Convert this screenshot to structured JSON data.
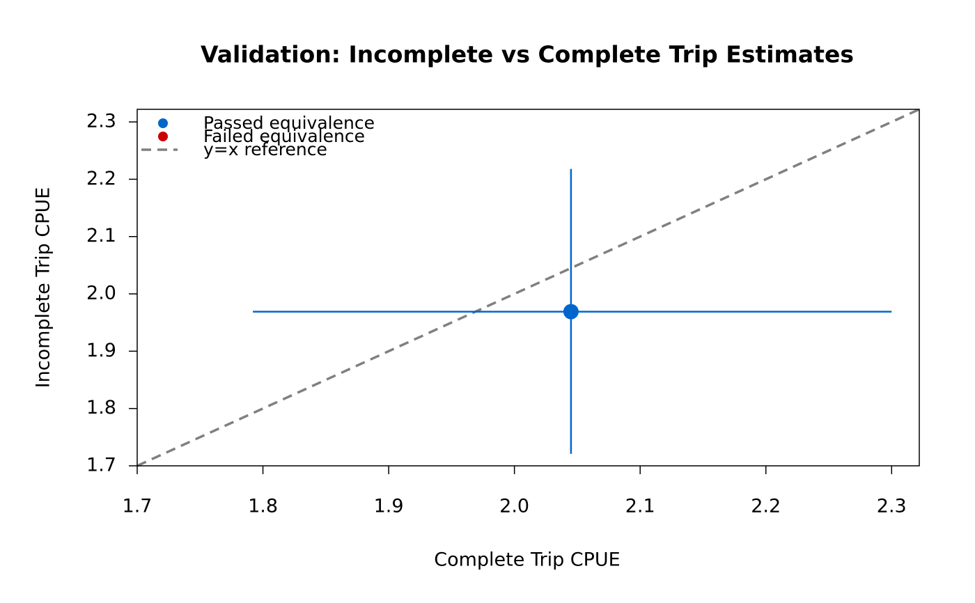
{
  "chart_data": {
    "type": "scatter",
    "title": "Validation: Incomplete vs Complete Trip Estimates",
    "x_label": "Complete Trip CPUE",
    "y_label": "Incomplete Trip CPUE",
    "xlim": [
      1.7,
      2.322
    ],
    "ylim": [
      1.7,
      2.322
    ],
    "xticks": [
      1.7,
      1.8,
      1.9,
      {
        "value": 2,
        "label": "2.0"
      },
      2.1,
      2.2,
      2.3
    ],
    "yticks": [
      1.7,
      1.8,
      1.9,
      {
        "value": 2,
        "label": "2.0"
      },
      2.1,
      2.2,
      2.3
    ],
    "series": [
      {
        "name": "Passed equivalence",
        "color": "#0066cc",
        "x": [
          2.045
        ],
        "values": [
          1.969
        ],
        "x_low": [
          1.792
        ],
        "x_high": [
          2.3
        ],
        "y_low": [
          1.721
        ],
        "y_high": [
          2.218
        ]
      },
      {
        "name": "Failed equivalence",
        "color": "#cc0000",
        "x": [],
        "values": []
      }
    ],
    "reference_line": {
      "name": "y=x reference",
      "color": "#808080"
    },
    "legend": "top-left"
  }
}
